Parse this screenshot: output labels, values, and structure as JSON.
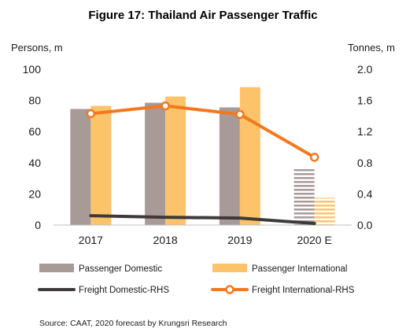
{
  "chart_data": {
    "type": "bar",
    "title": "Figure 17: Thailand Air Passenger Traffic",
    "ylabel_left": "Persons, m",
    "ylabel_right": "Tonnes, m",
    "categories": [
      "2017",
      "2018",
      "2019",
      "2020 E"
    ],
    "ylim_left": [
      0,
      100
    ],
    "yticks_left": [
      "0",
      "20",
      "40",
      "60",
      "80",
      "100"
    ],
    "ylim_right": [
      0,
      2.0
    ],
    "yticks_right": [
      "0.0",
      "0.4",
      "0.8",
      "1.2",
      "1.6",
      "2.0"
    ],
    "grid": false,
    "legend_position": "bottom",
    "bar_series": [
      {
        "name": "Passenger Domestic",
        "values": [
          74.5,
          78.5,
          75.5,
          36.5
        ],
        "color": "#a89a97",
        "forecast_last": true
      },
      {
        "name": "Passenger International",
        "values": [
          76.5,
          82.5,
          88.5,
          17.5
        ],
        "color": "#fdc36b",
        "forecast_last": true
      }
    ],
    "line_series": [
      {
        "name": "Freight Domestic-RHS",
        "values": [
          0.12,
          0.1,
          0.09,
          0.02
        ],
        "color": "#3f3a39",
        "axis": "right",
        "markers": false
      },
      {
        "name": "Freight International-RHS",
        "values": [
          1.43,
          1.53,
          1.42,
          0.87
        ],
        "color": "#f4781e",
        "axis": "right",
        "markers": true
      }
    ],
    "source": "Source:  CAAT, 2020 forecast by Krungsri Research"
  }
}
